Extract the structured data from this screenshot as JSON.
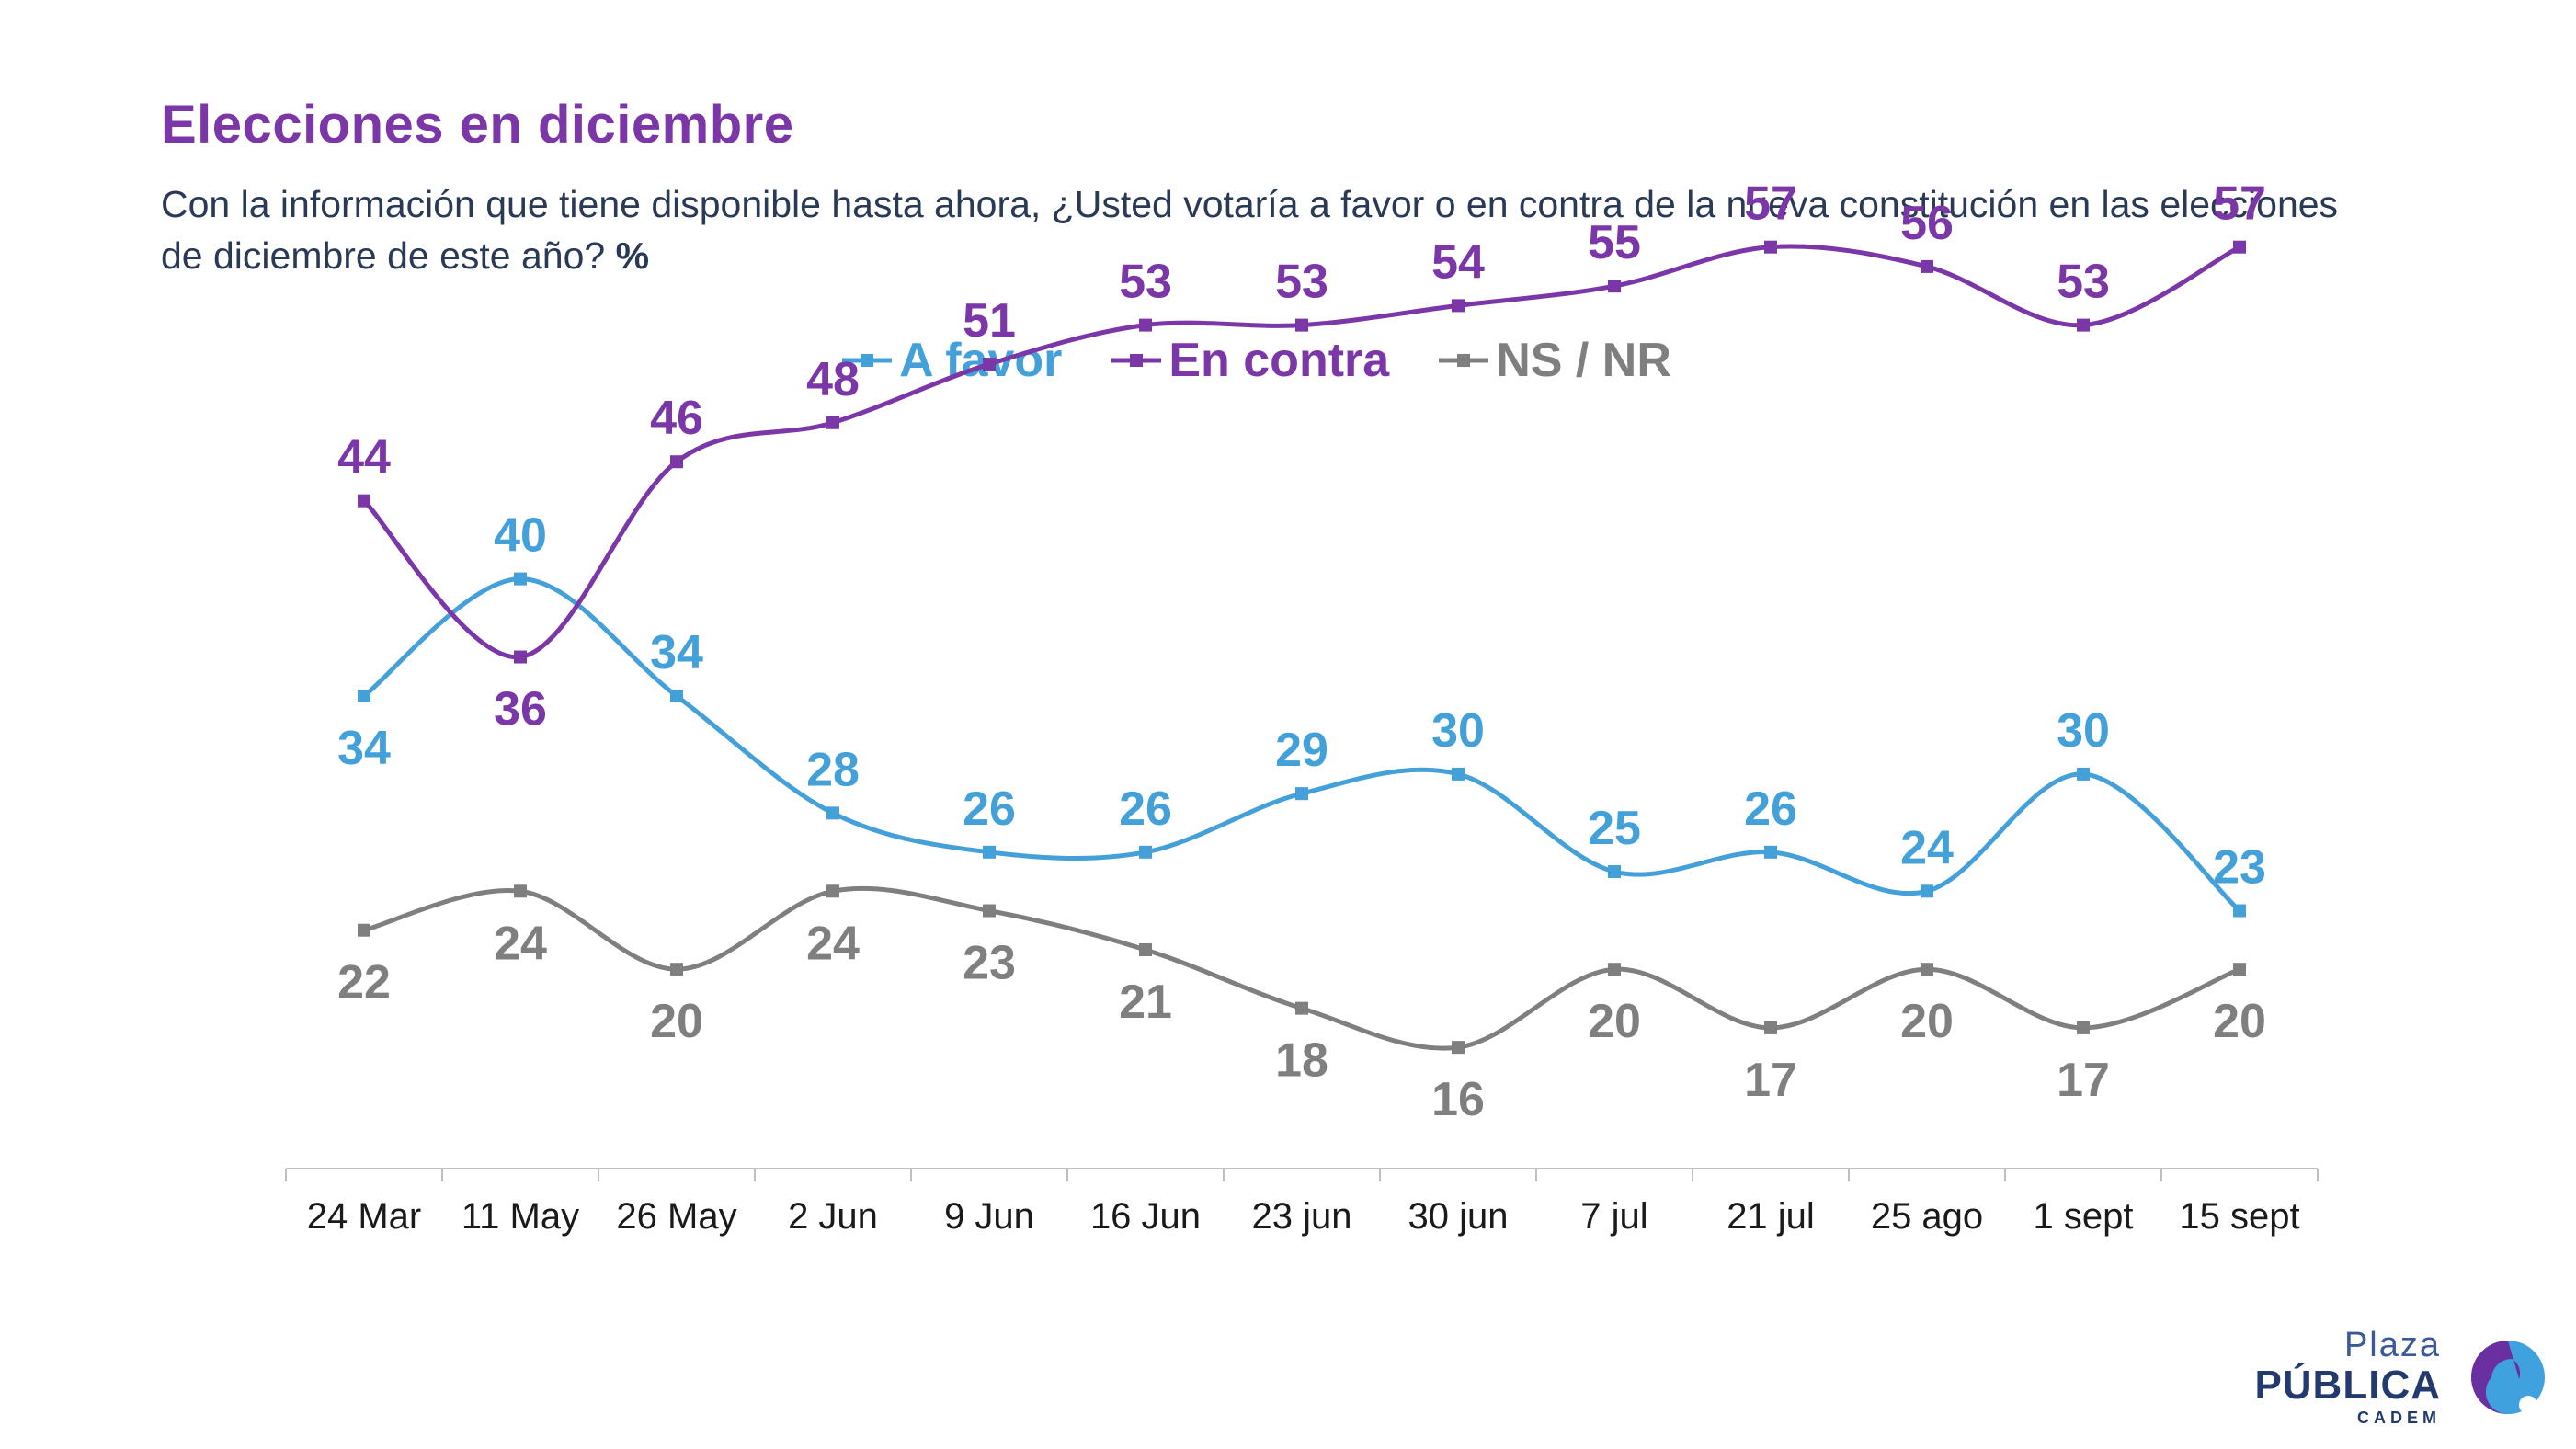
{
  "title": "Elecciones en diciembre",
  "subtitle": "Con la información que tiene disponible hasta ahora, ¿Usted votaría a favor o en contra de la nueva constitución en las elecciones de diciembre de este año?",
  "subtitle_unit": "%",
  "logo": {
    "line1": "Plaza",
    "line2": "PÚBLICA",
    "line3": "CADEM"
  },
  "chart_data": {
    "type": "line",
    "categories": [
      "24 Mar",
      "11 May",
      "26 May",
      "2 Jun",
      "9 Jun",
      "16 Jun",
      "23 jun",
      "30 jun",
      "7 jul",
      "21 jul",
      "25 ago",
      "1 sept",
      "15 sept"
    ],
    "series": [
      {
        "name": "A favor",
        "color": "#44a0d9",
        "values": [
          34,
          40,
          34,
          28,
          26,
          26,
          29,
          30,
          25,
          26,
          24,
          30,
          23
        ],
        "label_position": [
          "below",
          "above",
          "above",
          "above",
          "above",
          "above",
          "above",
          "above",
          "above",
          "above",
          "above",
          "above",
          "above"
        ]
      },
      {
        "name": "En contra",
        "color": "#7b36a8",
        "values": [
          44,
          36,
          46,
          48,
          51,
          53,
          53,
          54,
          55,
          57,
          56,
          53,
          57
        ],
        "label_position": [
          "above",
          "below",
          "above",
          "above",
          "above",
          "above",
          "above",
          "above",
          "above",
          "above",
          "above",
          "above",
          "above"
        ]
      },
      {
        "name": "NS / NR",
        "color": "#7f7f7f",
        "values": [
          22,
          24,
          20,
          24,
          23,
          21,
          18,
          16,
          20,
          17,
          20,
          17,
          20
        ],
        "label_position": [
          "below",
          "below",
          "below",
          "below",
          "below",
          "below",
          "below",
          "below",
          "below",
          "below",
          "below",
          "below",
          "below"
        ]
      }
    ],
    "ylim": [
      0,
      60
    ],
    "grid": false,
    "legend_position": "top-center"
  }
}
